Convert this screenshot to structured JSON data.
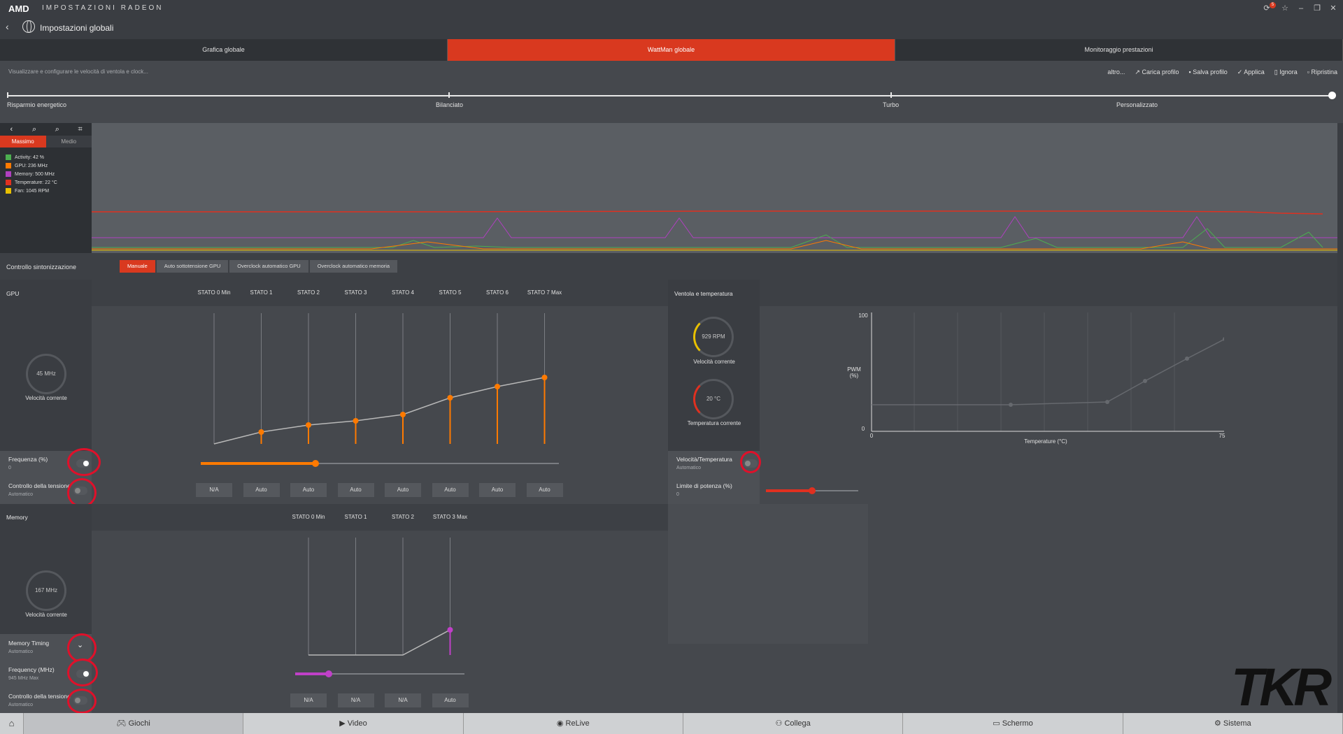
{
  "titlebar": {
    "brand": "AMD",
    "title": "IMPOSTAZIONI RADEON",
    "badge": "5"
  },
  "header": {
    "title": "Impostazioni globali"
  },
  "tabs": [
    {
      "label": "Grafica globale"
    },
    {
      "label": "WattMan globale"
    },
    {
      "label": "Monitoraggio prestazioni"
    }
  ],
  "subbar": {
    "description": "Visualizzare e configurare le velocità di ventola e clock...",
    "actions": [
      "altro...",
      "Carica profilo",
      "Salva profilo",
      "Applica",
      "Ignora",
      "Ripristina"
    ]
  },
  "profiles": [
    "Risparmio energetico",
    "Bilanciato",
    "Turbo",
    "Personalizzato"
  ],
  "monitor": {
    "modes": [
      "Massimo",
      "Medio"
    ],
    "legend": [
      {
        "label": "Activity: 42 %",
        "color": "#4caf50"
      },
      {
        "label": "GPU: 236 MHz",
        "color": "#ff7a00"
      },
      {
        "label": "Memory: 500 MHz",
        "color": "#b040c0"
      },
      {
        "label": "Temperature: 22 °C",
        "color": "#e03020"
      },
      {
        "label": "Fan: 1045 RPM",
        "color": "#e8c000"
      }
    ]
  },
  "tuning": {
    "label": "Controllo sintonizzazione",
    "buttons": [
      "Manuale",
      "Auto sottotensione GPU",
      "Overclock automatico GPU",
      "Overclock automatico memoria"
    ]
  },
  "gpu": {
    "title": "GPU",
    "states": [
      "STATO 0 Min",
      "STATO 1",
      "STATO 2",
      "STATO 3",
      "STATO 4",
      "STATO 5",
      "STATO 6",
      "STATO 7 Max"
    ],
    "gauge_value": "45 MHz",
    "gauge_label": "Velocità corrente",
    "freq_label": "Frequenza (%)",
    "freq_value": "0",
    "volt_label": "Controllo della tensione",
    "volt_value": "Automatico",
    "volt_values": [
      "N/A",
      "Auto",
      "Auto",
      "Auto",
      "Auto",
      "Auto",
      "Auto",
      "Auto"
    ],
    "freq_slider_fraction": 0.32
  },
  "memory": {
    "title": "Memory",
    "states": [
      "STATO 0 Min",
      "STATO 1",
      "STATO 2",
      "STATO 3 Max"
    ],
    "gauge_value": "167 MHz",
    "gauge_label": "Velocità corrente",
    "timing_label": "Memory Timing",
    "timing_value": "Automatico",
    "freq_label": "Frequency (MHz)",
    "freq_value": "945 MHz Max",
    "volt_label": "Controllo della tensione",
    "volt_value": "Automatico",
    "volt_values": [
      "N/A",
      "N/A",
      "N/A",
      "Auto"
    ],
    "freq_slider_fraction": 0.2
  },
  "fan": {
    "title": "Ventola e temperatura",
    "speed_value": "929 RPM",
    "speed_label": "Velocità corrente",
    "temp_value": "20 °C",
    "temp_label": "Temperatura corrente",
    "chart_ylabel": "PWM\n(%)",
    "chart_xlabel": "Temperature (°C)",
    "y_top": "100",
    "y_bottom": "0",
    "x_left": "0",
    "x_right": "75",
    "curve_label": "Velocità/Temperatura",
    "curve_value": "Automatico",
    "power_label": "Limite di potenza (%)",
    "power_value": "0",
    "power_slider_fraction": 0.5
  },
  "bottomnav": [
    {
      "label": "Giochi"
    },
    {
      "label": "Video"
    },
    {
      "label": "ReLive"
    },
    {
      "label": "Collega"
    },
    {
      "label": "Schermo"
    },
    {
      "label": "Sistema"
    }
  ],
  "watermark": "TKR",
  "colors": {
    "accent": "#d9391f",
    "highlight": "#e0102a"
  }
}
